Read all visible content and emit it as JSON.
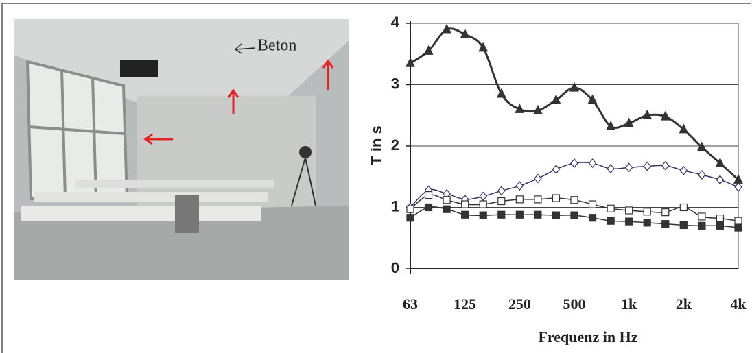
{
  "image": {
    "annotation": "Beton"
  },
  "chart_data": {
    "type": "line",
    "y_label": "T in s",
    "x_label": "Frequenz in Hz",
    "categories": [
      "63",
      null,
      null,
      "125",
      null,
      null,
      "250",
      null,
      null,
      "500",
      null,
      null,
      "1k",
      null,
      null,
      "2k",
      null,
      null,
      "4k"
    ],
    "ylim": [
      0,
      4
    ],
    "yticks": [
      0,
      1,
      2,
      3,
      4
    ],
    "grid": true,
    "smooth": true,
    "series": [
      {
        "color": "#333333",
        "marker": "triangle",
        "marker_fill": "#333333",
        "values": [
          3.35,
          3.55,
          3.9,
          3.82,
          3.6,
          2.85,
          2.6,
          2.58,
          2.75,
          2.95,
          2.75,
          2.32,
          2.37,
          2.5,
          2.48,
          2.27,
          1.98,
          1.72,
          1.45
        ]
      },
      {
        "color": "#333366",
        "marker": "diamond",
        "marker_fill": "#ffffff",
        "values": [
          1.0,
          1.28,
          1.22,
          1.13,
          1.18,
          1.27,
          1.35,
          1.47,
          1.62,
          1.72,
          1.72,
          1.63,
          1.65,
          1.67,
          1.68,
          1.6,
          1.53,
          1.45,
          1.33
        ]
      },
      {
        "color": "#333333",
        "marker": "square",
        "marker_fill": "#ffffff",
        "values": [
          0.97,
          1.2,
          1.12,
          1.05,
          1.05,
          1.1,
          1.13,
          1.13,
          1.15,
          1.12,
          1.05,
          0.98,
          0.95,
          0.93,
          0.92,
          1.0,
          0.85,
          0.82,
          0.78
        ]
      },
      {
        "color": "#333333",
        "marker": "square",
        "marker_fill": "#333333",
        "values": [
          0.83,
          1.0,
          0.97,
          0.88,
          0.87,
          0.88,
          0.88,
          0.88,
          0.87,
          0.87,
          0.83,
          0.78,
          0.77,
          0.75,
          0.73,
          0.71,
          0.7,
          0.7,
          0.67
        ]
      }
    ]
  }
}
